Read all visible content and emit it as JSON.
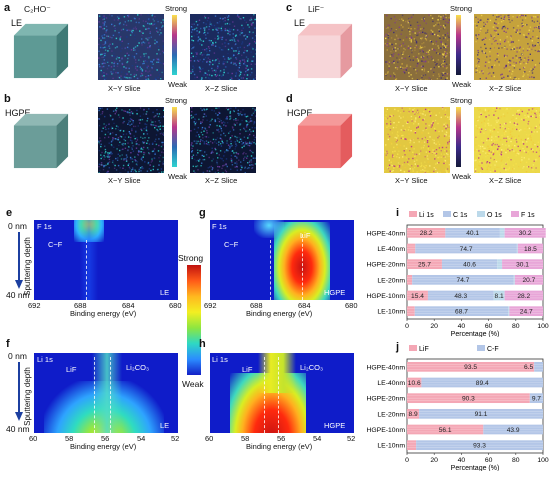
{
  "panels": {
    "a": {
      "letter": "a",
      "species": "C₂HO⁻",
      "sample": "LE",
      "slice_xy": "X−Y Slice",
      "slice_xz": "X−Z Slice",
      "scale_top": "Strong",
      "scale_bottom": "Weak"
    },
    "b": {
      "letter": "b",
      "sample": "HGPE",
      "slice_xy": "X−Y Slice",
      "slice_xz": "X−Z Slice",
      "scale_top": "Strong",
      "scale_bottom": "Weak"
    },
    "c": {
      "letter": "c",
      "species": "LiF⁻",
      "sample": "LE",
      "slice_xy": "X−Y Slice",
      "slice_xz": "X−Z Slice",
      "scale_top": "Strong",
      "scale_bottom": "Weak"
    },
    "d": {
      "letter": "d",
      "sample": "HGPE",
      "slice_xy": "X−Y Slice",
      "slice_xz": "X−Z Slice",
      "scale_top": "Strong",
      "scale_bottom": "Weak"
    },
    "e": {
      "letter": "e",
      "element": "F 1s",
      "sample": "LE",
      "peak": "C−F",
      "xticks": [
        "692",
        "688",
        "684",
        "680"
      ],
      "xlabel": "Binding energy (eV)"
    },
    "f": {
      "letter": "f",
      "element": "Li 1s",
      "sample": "LE",
      "peak1": "LiF",
      "peak2": "Li₂CO₃",
      "xticks": [
        "60",
        "58",
        "56",
        "54",
        "52"
      ],
      "xlabel": "Binding energy (eV)"
    },
    "g": {
      "letter": "g",
      "element": "F 1s",
      "sample": "HGPE",
      "peak1": "C−F",
      "peak2": "LiF",
      "xticks": [
        "692",
        "688",
        "684",
        "680"
      ],
      "xlabel": "Binding energy (eV)"
    },
    "h": {
      "letter": "h",
      "element": "Li 1s",
      "sample": "HGPE",
      "peak1": "LiF",
      "peak2": "Li₂CO₃",
      "xticks": [
        "60",
        "58",
        "56",
        "54",
        "52"
      ],
      "xlabel": "Binding energy (eV)"
    },
    "depth": {
      "ylabel": "Sputtering depth",
      "top": "0 nm",
      "bottom": "40 nm"
    },
    "colorbar": {
      "top": "Strong",
      "bottom": "Weak"
    },
    "i": {
      "letter": "i",
      "xlabel": "Percentage (%)",
      "xticks": [
        "0",
        "20",
        "40",
        "60",
        "80",
        "100"
      ]
    },
    "j": {
      "letter": "j",
      "xlabel": "Percentage (%)",
      "xticks": [
        "0",
        "20",
        "40",
        "60",
        "80",
        "100"
      ]
    }
  },
  "chart_data": [
    {
      "type": "bar",
      "title": "",
      "orientation": "horizontal-stacked",
      "xlabel": "Percentage (%)",
      "xlim": [
        0,
        100
      ],
      "categories": [
        "HGPE-40nm",
        "LE-40nm",
        "HGPE-20nm",
        "LE-20nm",
        "HGPE-10nm",
        "LE-10nm"
      ],
      "series": [
        {
          "name": "Li 1s",
          "color": "#f4a7b5",
          "values": [
            28.2,
            6.1,
            25.7,
            3.8,
            15.4,
            5.7
          ]
        },
        {
          "name": "C 1s",
          "color": "#b3c6e7",
          "values": [
            40.1,
            74.7,
            40.6,
            74.7,
            48.3,
            68.7
          ]
        },
        {
          "name": "O 1s",
          "color": "#bcd9ea",
          "values": [
            3.5,
            0.7,
            3.6,
            0.8,
            8.1,
            0.9
          ]
        },
        {
          "name": "F 1s",
          "color": "#e8a6d8",
          "values": [
            30.2,
            18.5,
            30.1,
            20.7,
            28.2,
            24.7
          ]
        }
      ],
      "legend": "top"
    },
    {
      "type": "bar",
      "title": "",
      "orientation": "horizontal-stacked",
      "xlabel": "Percentage (%)",
      "xlim": [
        0,
        100
      ],
      "categories": [
        "HGPE-40nm",
        "LE-40nm",
        "HGPE-20nm",
        "LE-20nm",
        "HGPE-10nm",
        "LE-10nm"
      ],
      "series": [
        {
          "name": "LiF",
          "color": "#f4a7b5",
          "values": [
            93.5,
            10.6,
            90.3,
            8.9,
            56.1,
            6.7
          ]
        },
        {
          "name": "C-F",
          "color": "#b3c6e7",
          "values": [
            6.5,
            89.4,
            9.7,
            91.1,
            43.9,
            93.3
          ]
        }
      ],
      "legend": "top"
    }
  ]
}
